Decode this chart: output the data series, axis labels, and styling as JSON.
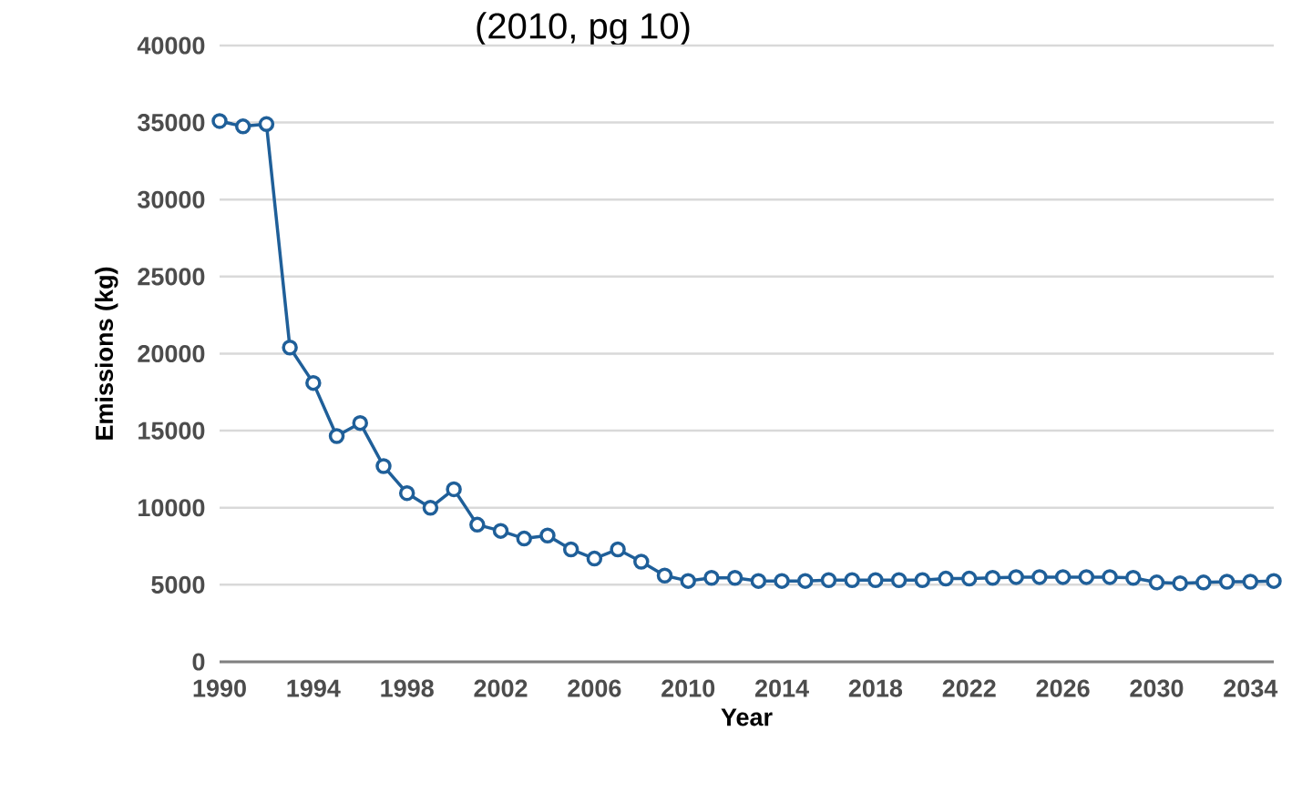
{
  "chart_data": {
    "type": "line",
    "title": "(2010, pg 10)",
    "xlabel": "Year",
    "ylabel": "Emissions (kg)",
    "x": [
      1990,
      1991,
      1992,
      1993,
      1994,
      1995,
      1996,
      1997,
      1998,
      1999,
      2000,
      2001,
      2002,
      2003,
      2004,
      2005,
      2006,
      2007,
      2008,
      2009,
      2010,
      2011,
      2012,
      2013,
      2014,
      2015,
      2016,
      2017,
      2018,
      2019,
      2020,
      2021,
      2022,
      2023,
      2024,
      2025,
      2026,
      2027,
      2028,
      2029,
      2030,
      2031,
      2032,
      2033,
      2034,
      2035
    ],
    "series": [
      {
        "color": "#1f5f99",
        "values": [
          35100,
          34750,
          34900,
          20400,
          18100,
          14650,
          15500,
          12700,
          10950,
          10000,
          11200,
          8900,
          8500,
          8000,
          8200,
          7300,
          6700,
          7300,
          6500,
          5600,
          5250,
          5450,
          5450,
          5250,
          5250,
          5250,
          5300,
          5300,
          5300,
          5300,
          5300,
          5400,
          5400,
          5450,
          5500,
          5500,
          5500,
          5500,
          5500,
          5450,
          5150,
          5100,
          5150,
          5200,
          5200,
          5250
        ]
      }
    ],
    "xlim": [
      1990,
      2035
    ],
    "ylim": [
      0,
      40000
    ],
    "xticks": [
      1990,
      1994,
      1998,
      2002,
      2006,
      2010,
      2014,
      2018,
      2022,
      2026,
      2030,
      2034
    ],
    "yticks": [
      0,
      5000,
      10000,
      15000,
      20000,
      25000,
      30000,
      35000,
      40000
    ],
    "grid": "y",
    "marker": "circle",
    "line_style": "solid"
  }
}
